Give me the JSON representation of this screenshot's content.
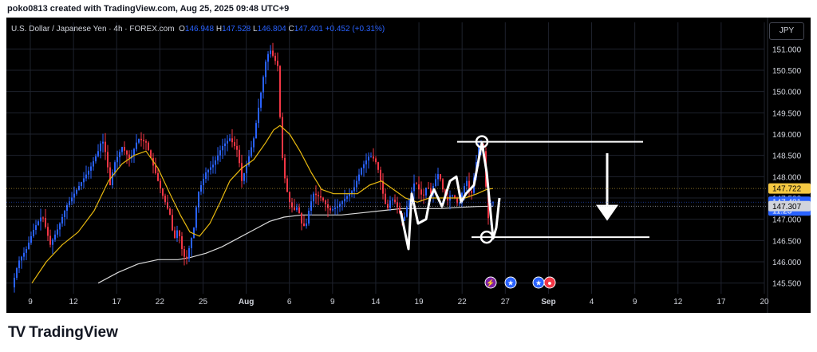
{
  "header": {
    "credit": "poko0813 created with TradingView.com, Aug 25, 2025 09:48 UTC+9"
  },
  "legend": {
    "symbol": "U.S. Dollar / Japanese Yen · 4h · FOREX.com",
    "o_label": "O",
    "o_value": "146.948",
    "h_label": "H",
    "h_value": "147.528",
    "l_label": "L",
    "l_value": "146.804",
    "c_label": "C",
    "c_value": "147.401",
    "change": "+0.452 (+0.31%)"
  },
  "currency_button": "JPY",
  "footer": {
    "brand": "TradingView",
    "logo_mark": "TV"
  },
  "chart_data": {
    "type": "candlestick",
    "ylim": [
      145.25,
      151.25
    ],
    "y_ticks": [
      "151.000",
      "150.500",
      "150.000",
      "149.500",
      "149.000",
      "148.500",
      "148.000",
      "147.500",
      "147.000",
      "146.500",
      "146.000",
      "145.500"
    ],
    "x_ticks": [
      "9",
      "12",
      "17",
      "22",
      "25",
      "Aug",
      "6",
      "9",
      "14",
      "19",
      "22",
      "27",
      "Sep",
      "4",
      "9",
      "12",
      "17",
      "20"
    ],
    "price_badges": [
      {
        "text": "147.722",
        "sub": "",
        "value": 147.722,
        "color": "#f5c842",
        "text_color": "#000000"
      },
      {
        "text": "147.401",
        "sub": "11:23",
        "value": 147.401,
        "color": "#2962ff",
        "text_color": "#ffffff"
      },
      {
        "text": "147.307",
        "sub": "",
        "value": 147.307,
        "color": "#d1d4dc",
        "text_color": "#000000"
      }
    ],
    "colors": {
      "up": "#2962ff",
      "down": "#f23645",
      "ma_fast": "#e8b90f",
      "ma_slow": "#d9d9d9",
      "annotation": "#ffffff"
    },
    "price_path": [
      [
        0,
        145.4
      ],
      [
        8,
        146.0
      ],
      [
        18,
        146.3
      ],
      [
        28,
        146.8
      ],
      [
        38,
        147.1
      ],
      [
        48,
        146.4
      ],
      [
        58,
        146.8
      ],
      [
        68,
        147.3
      ],
      [
        78,
        147.6
      ],
      [
        88,
        147.9
      ],
      [
        98,
        148.2
      ],
      [
        108,
        148.6
      ],
      [
        113,
        148.9
      ],
      [
        118,
        148.5
      ],
      [
        123,
        147.8
      ],
      [
        128,
        148.3
      ],
      [
        138,
        148.7
      ],
      [
        148,
        148.4
      ],
      [
        158,
        148.9
      ],
      [
        168,
        148.8
      ],
      [
        178,
        148.2
      ],
      [
        188,
        147.6
      ],
      [
        198,
        147.1
      ],
      [
        203,
        146.5
      ],
      [
        208,
        146.8
      ],
      [
        213,
        146.3
      ],
      [
        218,
        146.0
      ],
      [
        223,
        146.4
      ],
      [
        228,
        146.8
      ],
      [
        233,
        147.6
      ],
      [
        243,
        148.1
      ],
      [
        253,
        148.3
      ],
      [
        263,
        148.7
      ],
      [
        273,
        148.9
      ],
      [
        283,
        148.6
      ],
      [
        288,
        147.9
      ],
      [
        293,
        148.2
      ],
      [
        303,
        148.9
      ],
      [
        308,
        149.5
      ],
      [
        313,
        150.1
      ],
      [
        318,
        150.7
      ],
      [
        323,
        151.0
      ],
      [
        328,
        150.8
      ],
      [
        333,
        150.6
      ],
      [
        338,
        148.6
      ],
      [
        343,
        147.8
      ],
      [
        348,
        147.4
      ],
      [
        353,
        147.2
      ],
      [
        358,
        147.3
      ],
      [
        363,
        146.9
      ],
      [
        368,
        146.8
      ],
      [
        373,
        147.3
      ],
      [
        378,
        147.6
      ],
      [
        388,
        147.5
      ],
      [
        398,
        147.2
      ],
      [
        408,
        147.3
      ],
      [
        418,
        147.5
      ],
      [
        428,
        147.7
      ],
      [
        438,
        148.2
      ],
      [
        448,
        148.5
      ],
      [
        455,
        148.4
      ],
      [
        460,
        148.1
      ],
      [
        465,
        147.6
      ],
      [
        470,
        147.2
      ],
      [
        475,
        147.5
      ],
      [
        480,
        147.4
      ],
      [
        485,
        147.2
      ],
      [
        490,
        146.9
      ],
      [
        495,
        147.3
      ],
      [
        500,
        147.6
      ],
      [
        505,
        147.9
      ],
      [
        510,
        147.7
      ],
      [
        515,
        147.5
      ],
      [
        520,
        147.8
      ],
      [
        525,
        147.6
      ],
      [
        530,
        147.9
      ],
      [
        535,
        148.1
      ],
      [
        540,
        147.7
      ],
      [
        545,
        147.4
      ],
      [
        550,
        147.6
      ],
      [
        555,
        147.5
      ],
      [
        560,
        147.3
      ],
      [
        565,
        147.7
      ],
      [
        570,
        147.9
      ],
      [
        575,
        147.5
      ],
      [
        580,
        148.1
      ],
      [
        585,
        148.7
      ],
      [
        590,
        148.8
      ],
      [
        593,
        148.2
      ],
      [
        596,
        146.9
      ],
      [
        600,
        147.4
      ]
    ],
    "ma_fast": [
      [
        22,
        145.5
      ],
      [
        40,
        146.0
      ],
      [
        60,
        146.4
      ],
      [
        80,
        146.7
      ],
      [
        100,
        147.2
      ],
      [
        118,
        147.9
      ],
      [
        135,
        148.3
      ],
      [
        150,
        148.5
      ],
      [
        165,
        148.6
      ],
      [
        180,
        148.2
      ],
      [
        195,
        147.6
      ],
      [
        208,
        147.1
      ],
      [
        220,
        146.7
      ],
      [
        232,
        146.6
      ],
      [
        245,
        146.9
      ],
      [
        258,
        147.4
      ],
      [
        270,
        147.9
      ],
      [
        285,
        148.2
      ],
      [
        300,
        148.4
      ],
      [
        315,
        148.8
      ],
      [
        325,
        149.1
      ],
      [
        333,
        149.2
      ],
      [
        345,
        149.0
      ],
      [
        358,
        148.6
      ],
      [
        372,
        148.1
      ],
      [
        385,
        147.7
      ],
      [
        400,
        147.6
      ],
      [
        415,
        147.6
      ],
      [
        430,
        147.6
      ],
      [
        445,
        147.8
      ],
      [
        460,
        147.9
      ],
      [
        475,
        147.7
      ],
      [
        490,
        147.5
      ],
      [
        505,
        147.4
      ],
      [
        520,
        147.5
      ],
      [
        535,
        147.5
      ],
      [
        550,
        147.5
      ],
      [
        565,
        147.5
      ],
      [
        580,
        147.6
      ],
      [
        592,
        147.7
      ],
      [
        600,
        147.722
      ]
    ],
    "ma_slow": [
      [
        105,
        145.5
      ],
      [
        130,
        145.75
      ],
      [
        155,
        145.95
      ],
      [
        180,
        146.05
      ],
      [
        205,
        146.05
      ],
      [
        220,
        146.1
      ],
      [
        240,
        146.2
      ],
      [
        260,
        146.35
      ],
      [
        280,
        146.55
      ],
      [
        300,
        146.75
      ],
      [
        320,
        146.95
      ],
      [
        338,
        147.05
      ],
      [
        360,
        147.1
      ],
      [
        385,
        147.1
      ],
      [
        410,
        147.1
      ],
      [
        435,
        147.15
      ],
      [
        460,
        147.2
      ],
      [
        485,
        147.25
      ],
      [
        510,
        147.25
      ],
      [
        535,
        147.25
      ],
      [
        560,
        147.28
      ],
      [
        580,
        147.3
      ],
      [
        600,
        147.307
      ]
    ],
    "zigzag": [
      [
        484,
        147.2
      ],
      [
        494,
        146.3
      ],
      [
        498,
        147.6
      ],
      [
        506,
        146.9
      ],
      [
        516,
        147.0
      ],
      [
        521,
        147.5
      ],
      [
        526,
        147.7
      ],
      [
        536,
        147.3
      ],
      [
        546,
        147.9
      ],
      [
        554,
        148.0
      ],
      [
        560,
        147.4
      ],
      [
        566,
        147.6
      ],
      [
        576,
        147.8
      ],
      [
        586,
        148.8
      ],
      [
        592,
        148.1
      ],
      [
        600,
        146.55
      ],
      [
        604,
        146.8
      ],
      [
        608,
        147.5
      ]
    ],
    "annotations": {
      "resistance": 148.82,
      "support": 146.58,
      "arrow_from": 148.55,
      "arrow_to": 147.0
    },
    "event_icons": [
      {
        "name": "lightning-event-icon",
        "symbol": "⚡",
        "bg": "#7b1fa2"
      },
      {
        "name": "us-flag-event-icon",
        "symbol": "★",
        "bg": "#2962ff"
      },
      {
        "name": "us-flag-event-icon-2",
        "symbol": "★",
        "bg": "#2962ff"
      },
      {
        "name": "jp-flag-event-icon",
        "symbol": "●",
        "bg": "#f23645"
      }
    ]
  }
}
